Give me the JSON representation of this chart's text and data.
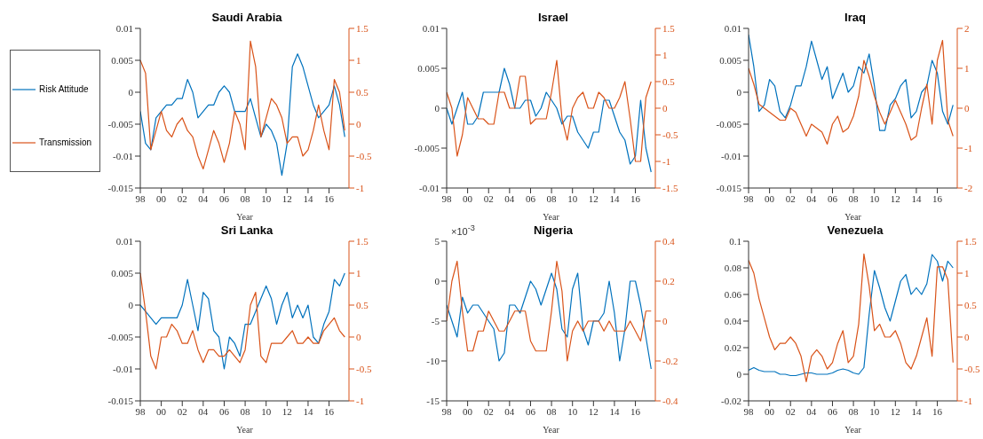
{
  "chart_data": [
    {
      "type": "line",
      "title": "Saudi Arabia",
      "xlabel": "Year",
      "legend": "left",
      "marker": "none",
      "x": [
        1998,
        1998.5,
        1999,
        1999.5,
        2000,
        2000.5,
        2001,
        2001.5,
        2002,
        2002.5,
        2003,
        2003.5,
        2004,
        2004.5,
        2005,
        2005.5,
        2006,
        2006.5,
        2007,
        2007.5,
        2008,
        2008.5,
        2009,
        2009.5,
        2010,
        2010.5,
        2011,
        2011.5,
        2012,
        2012.5,
        2013,
        2013.5,
        2014,
        2014.5,
        2015,
        2015.5,
        2016,
        2016.5,
        2017,
        2017.5
      ],
      "xlim": [
        1998,
        2017.9
      ],
      "xticks": [
        {
          "value": 1998,
          "label": "98"
        },
        {
          "value": 2000,
          "label": "00"
        },
        {
          "value": 2002,
          "label": "02"
        },
        {
          "value": 2004,
          "label": "04"
        },
        {
          "value": 2006,
          "label": "06"
        },
        {
          "value": 2008,
          "label": "08"
        },
        {
          "value": 2010,
          "label": "10"
        },
        {
          "value": 2012,
          "label": "12"
        },
        {
          "value": 2014,
          "label": "14"
        },
        {
          "value": 2016,
          "label": "16"
        }
      ],
      "ylim": [
        -0.015,
        0.01
      ],
      "yticks": [
        -0.015,
        -0.01,
        -0.005,
        0,
        0.005,
        0.01
      ],
      "y2lim": [
        -1,
        1.5
      ],
      "y2ticks": [
        -1,
        -0.5,
        0,
        0.5,
        1,
        1.5
      ],
      "series": [
        {
          "name": "Risk Attitude",
          "color": "#0072bd",
          "values": [
            -0.003,
            -0.008,
            -0.009,
            -0.004,
            -0.003,
            -0.002,
            -0.002,
            -0.001,
            -0.001,
            0.002,
            0,
            -0.004,
            -0.003,
            -0.002,
            -0.002,
            0,
            0.001,
            0,
            -0.003,
            -0.003,
            -0.003,
            -0.001,
            -0.004,
            -0.007,
            -0.005,
            -0.006,
            -0.008,
            -0.013,
            -0.008,
            0.004,
            0.006,
            0.004,
            0.001,
            -0.002,
            -0.004,
            -0.003,
            -0.002,
            0.001,
            -0.002,
            -0.007
          ]
        },
        {
          "name": "Transmission",
          "color": "#d95319",
          "axis": "y2",
          "values": [
            1,
            0.8,
            -0.4,
            -0.1,
            0.2,
            -0.1,
            -0.2,
            0,
            0.1,
            -0.1,
            -0.2,
            -0.5,
            -0.7,
            -0.4,
            -0.1,
            -0.3,
            -0.6,
            -0.3,
            0.2,
            0,
            -0.4,
            1.3,
            0.9,
            -0.2,
            0.1,
            0.4,
            0.3,
            0.1,
            -0.3,
            -0.2,
            -0.2,
            -0.5,
            -0.4,
            -0.1,
            0.3,
            -0.1,
            -0.4,
            0.7,
            0.5,
            -0.1
          ]
        }
      ]
    },
    {
      "type": "line",
      "title": "Israel",
      "xlabel": "Year",
      "marker": "none",
      "x": [
        1998,
        1998.5,
        1999,
        1999.5,
        2000,
        2000.5,
        2001,
        2001.5,
        2002,
        2002.5,
        2003,
        2003.5,
        2004,
        2004.5,
        2005,
        2005.5,
        2006,
        2006.5,
        2007,
        2007.5,
        2008,
        2008.5,
        2009,
        2009.5,
        2010,
        2010.5,
        2011,
        2011.5,
        2012,
        2012.5,
        2013,
        2013.5,
        2014,
        2014.5,
        2015,
        2015.5,
        2016,
        2016.5,
        2017,
        2017.5
      ],
      "xlim": [
        1998,
        2017.9
      ],
      "xticks": [
        {
          "value": 1998,
          "label": "98"
        },
        {
          "value": 2000,
          "label": "00"
        },
        {
          "value": 2002,
          "label": "02"
        },
        {
          "value": 2004,
          "label": "04"
        },
        {
          "value": 2006,
          "label": "06"
        },
        {
          "value": 2008,
          "label": "08"
        },
        {
          "value": 2010,
          "label": "10"
        },
        {
          "value": 2012,
          "label": "12"
        },
        {
          "value": 2014,
          "label": "14"
        },
        {
          "value": 2016,
          "label": "16"
        }
      ],
      "ylim": [
        -0.01,
        0.01
      ],
      "yticks": [
        -0.01,
        -0.005,
        0,
        0.005,
        0.01
      ],
      "y2lim": [
        -1.5,
        1.5
      ],
      "y2ticks": [
        -1.5,
        -1,
        -0.5,
        0,
        0.5,
        1,
        1.5
      ],
      "series": [
        {
          "color": "#0072bd",
          "values": [
            0,
            -0.002,
            0,
            0.002,
            -0.002,
            -0.002,
            -0.001,
            0.002,
            0.002,
            0.002,
            0.002,
            0.005,
            0.003,
            0,
            0,
            0.001,
            0.001,
            -0.001,
            0,
            0.002,
            0.001,
            0,
            -0.002,
            -0.001,
            -0.001,
            -0.003,
            -0.004,
            -0.005,
            -0.003,
            -0.003,
            0.001,
            0.001,
            -0.001,
            -0.003,
            -0.004,
            -0.007,
            -0.006,
            0.001,
            -0.005,
            -0.008
          ]
        },
        {
          "color": "#d95319",
          "axis": "y2",
          "values": [
            0.3,
            0,
            -0.9,
            -0.5,
            0.2,
            0,
            -0.2,
            -0.2,
            -0.3,
            -0.3,
            0.3,
            0.3,
            0,
            0,
            0.6,
            0.6,
            -0.3,
            -0.2,
            -0.2,
            -0.2,
            0.3,
            0.9,
            -0.2,
            -0.6,
            0,
            0.2,
            0.3,
            0,
            0,
            0.3,
            0.2,
            0,
            0,
            0.2,
            0.5,
            -0.2,
            -1,
            -1,
            0.2,
            0.5
          ]
        }
      ]
    },
    {
      "type": "line",
      "title": "Iraq",
      "xlabel": "Year",
      "marker": "none",
      "x": [
        1998,
        1998.5,
        1999,
        1999.5,
        2000,
        2000.5,
        2001,
        2001.5,
        2002,
        2002.5,
        2003,
        2003.5,
        2004,
        2004.5,
        2005,
        2005.5,
        2006,
        2006.5,
        2007,
        2007.5,
        2008,
        2008.5,
        2009,
        2009.5,
        2010,
        2010.5,
        2011,
        2011.5,
        2012,
        2012.5,
        2013,
        2013.5,
        2014,
        2014.5,
        2015,
        2015.5,
        2016,
        2016.5,
        2017,
        2017.5
      ],
      "xlim": [
        1998,
        2017.9
      ],
      "xticks": [
        {
          "value": 1998,
          "label": "98"
        },
        {
          "value": 2000,
          "label": "00"
        },
        {
          "value": 2002,
          "label": "02"
        },
        {
          "value": 2004,
          "label": "04"
        },
        {
          "value": 2006,
          "label": "06"
        },
        {
          "value": 2008,
          "label": "08"
        },
        {
          "value": 2010,
          "label": "10"
        },
        {
          "value": 2012,
          "label": "12"
        },
        {
          "value": 2014,
          "label": "14"
        },
        {
          "value": 2016,
          "label": "16"
        }
      ],
      "ylim": [
        -0.015,
        0.01
      ],
      "yticks": [
        -0.015,
        -0.01,
        -0.005,
        0,
        0.005,
        0.01
      ],
      "y2lim": [
        -2,
        2
      ],
      "y2ticks": [
        -2,
        -1,
        0,
        1,
        2
      ],
      "series": [
        {
          "color": "#0072bd",
          "values": [
            0.009,
            0.004,
            -0.003,
            -0.002,
            0.002,
            0.001,
            -0.003,
            -0.004,
            -0.002,
            0.001,
            0.001,
            0.004,
            0.008,
            0.005,
            0.002,
            0.004,
            -0.001,
            0.001,
            0.003,
            0,
            0.001,
            0.004,
            0.003,
            0.006,
            0.001,
            -0.006,
            -0.006,
            -0.002,
            -0.001,
            0.001,
            0.002,
            -0.004,
            -0.003,
            0,
            0.001,
            0.005,
            0.003,
            -0.003,
            -0.005,
            -0.002
          ]
        },
        {
          "color": "#d95319",
          "axis": "y2",
          "values": [
            1,
            0.6,
            0.1,
            0,
            -0.1,
            -0.2,
            -0.3,
            -0.3,
            0,
            -0.1,
            -0.4,
            -0.7,
            -0.4,
            -0.5,
            -0.6,
            -0.9,
            -0.4,
            -0.2,
            -0.6,
            -0.5,
            -0.2,
            0.3,
            1.2,
            0.8,
            0.3,
            -0.1,
            -0.4,
            -0.1,
            0.2,
            -0.1,
            -0.4,
            -0.8,
            -0.7,
            0,
            0.6,
            -0.4,
            1.2,
            1.7,
            -0.3,
            -0.7
          ]
        }
      ]
    },
    {
      "type": "line",
      "title": "Sri Lanka",
      "xlabel": "Year",
      "marker": "none",
      "x": [
        1998,
        1998.5,
        1999,
        1999.5,
        2000,
        2000.5,
        2001,
        2001.5,
        2002,
        2002.5,
        2003,
        2003.5,
        2004,
        2004.5,
        2005,
        2005.5,
        2006,
        2006.5,
        2007,
        2007.5,
        2008,
        2008.5,
        2009,
        2009.5,
        2010,
        2010.5,
        2011,
        2011.5,
        2012,
        2012.5,
        2013,
        2013.5,
        2014,
        2014.5,
        2015,
        2015.5,
        2016,
        2016.5,
        2017,
        2017.5
      ],
      "xlim": [
        1998,
        2017.9
      ],
      "xticks": [
        {
          "value": 1998,
          "label": "98"
        },
        {
          "value": 2000,
          "label": "00"
        },
        {
          "value": 2002,
          "label": "02"
        },
        {
          "value": 2004,
          "label": "04"
        },
        {
          "value": 2006,
          "label": "06"
        },
        {
          "value": 2008,
          "label": "08"
        },
        {
          "value": 2010,
          "label": "10"
        },
        {
          "value": 2012,
          "label": "12"
        },
        {
          "value": 2014,
          "label": "14"
        },
        {
          "value": 2016,
          "label": "16"
        }
      ],
      "ylim": [
        -0.015,
        0.01
      ],
      "yticks": [
        -0.015,
        -0.01,
        -0.005,
        0,
        0.005,
        0.01
      ],
      "y2lim": [
        -1,
        1.5
      ],
      "y2ticks": [
        -1,
        -0.5,
        0,
        0.5,
        1,
        1.5
      ],
      "series": [
        {
          "color": "#0072bd",
          "values": [
            0,
            -0.001,
            -0.002,
            -0.003,
            -0.002,
            -0.002,
            -0.002,
            -0.002,
            0,
            0.004,
            0,
            -0.004,
            0.002,
            0.001,
            -0.004,
            -0.005,
            -0.01,
            -0.005,
            -0.006,
            -0.008,
            -0.003,
            -0.003,
            -0.001,
            0.001,
            0.003,
            0.001,
            -0.003,
            0,
            0.002,
            -0.002,
            0,
            -0.002,
            0,
            -0.005,
            -0.006,
            -0.003,
            -0.001,
            0.004,
            0.003,
            0.005
          ]
        },
        {
          "color": "#d95319",
          "axis": "y2",
          "values": [
            1,
            0.4,
            -0.3,
            -0.5,
            0,
            0,
            0.2,
            0.1,
            -0.1,
            -0.1,
            0.1,
            -0.2,
            -0.4,
            -0.2,
            -0.2,
            -0.3,
            -0.3,
            -0.2,
            -0.3,
            -0.4,
            -0.2,
            0.5,
            0.7,
            -0.3,
            -0.4,
            -0.1,
            -0.1,
            -0.1,
            0,
            0.1,
            -0.1,
            -0.1,
            0,
            -0.1,
            -0.1,
            0.1,
            0.2,
            0.3,
            0.1,
            0
          ]
        }
      ]
    },
    {
      "type": "line",
      "title": "Nigeria",
      "xlabel": "Year",
      "marker": "none",
      "annotations": [
        "×10$^{-3}$"
      ],
      "x": [
        1998,
        1998.5,
        1999,
        1999.5,
        2000,
        2000.5,
        2001,
        2001.5,
        2002,
        2002.5,
        2003,
        2003.5,
        2004,
        2004.5,
        2005,
        2005.5,
        2006,
        2006.5,
        2007,
        2007.5,
        2008,
        2008.5,
        2009,
        2009.5,
        2010,
        2010.5,
        2011,
        2011.5,
        2012,
        2012.5,
        2013,
        2013.5,
        2014,
        2014.5,
        2015,
        2015.5,
        2016,
        2016.5,
        2017,
        2017.5
      ],
      "xlim": [
        1998,
        2017.9
      ],
      "xticks": [
        {
          "value": 1998,
          "label": "98"
        },
        {
          "value": 2000,
          "label": "00"
        },
        {
          "value": 2002,
          "label": "02"
        },
        {
          "value": 2004,
          "label": "04"
        },
        {
          "value": 2006,
          "label": "06"
        },
        {
          "value": 2008,
          "label": "08"
        },
        {
          "value": 2010,
          "label": "10"
        },
        {
          "value": 2012,
          "label": "12"
        },
        {
          "value": 2014,
          "label": "14"
        },
        {
          "value": 2016,
          "label": "16"
        }
      ],
      "ylim": [
        -15,
        5
      ],
      "yticks": [
        -15,
        -10,
        -5,
        0,
        5
      ],
      "y2lim": [
        -0.4,
        0.4
      ],
      "y2ticks": [
        -0.4,
        -0.2,
        0,
        0.2,
        0.4
      ],
      "series": [
        {
          "color": "#0072bd",
          "values": [
            -3,
            -5,
            -7,
            -2,
            -4,
            -3,
            -3,
            -4,
            -5,
            -6,
            -10,
            -9,
            -3,
            -3,
            -4,
            -2,
            0,
            -1,
            -3,
            -1,
            1,
            -1,
            -6,
            -7,
            -1,
            1,
            -6,
            -8,
            -5,
            -5,
            -4,
            0,
            -4,
            -10,
            -6,
            0,
            0,
            -3,
            -7,
            -11
          ]
        },
        {
          "color": "#d95319",
          "axis": "y2",
          "values": [
            0,
            0.2,
            0.3,
            0.05,
            -0.15,
            -0.15,
            -0.05,
            -0.05,
            0.05,
            0,
            -0.05,
            -0.05,
            0,
            0.05,
            0.05,
            0.05,
            -0.1,
            -0.15,
            -0.15,
            -0.15,
            0.05,
            0.3,
            0.15,
            -0.2,
            -0.05,
            0,
            -0.05,
            0,
            0,
            0,
            -0.05,
            0,
            -0.05,
            -0.05,
            -0.05,
            0,
            -0.05,
            -0.1,
            0.05,
            0.05
          ]
        }
      ]
    },
    {
      "type": "line",
      "title": "Venezuela",
      "xlabel": "Year",
      "marker": "none",
      "x": [
        1998,
        1998.5,
        1999,
        1999.5,
        2000,
        2000.5,
        2001,
        2001.5,
        2002,
        2002.5,
        2003,
        2003.5,
        2004,
        2004.5,
        2005,
        2005.5,
        2006,
        2006.5,
        2007,
        2007.5,
        2008,
        2008.5,
        2009,
        2009.5,
        2010,
        2010.5,
        2011,
        2011.5,
        2012,
        2012.5,
        2013,
        2013.5,
        2014,
        2014.5,
        2015,
        2015.5,
        2016,
        2016.5,
        2017,
        2017.5
      ],
      "xlim": [
        1998,
        2017.9
      ],
      "xticks": [
        {
          "value": 1998,
          "label": "98"
        },
        {
          "value": 2000,
          "label": "00"
        },
        {
          "value": 2002,
          "label": "02"
        },
        {
          "value": 2004,
          "label": "04"
        },
        {
          "value": 2006,
          "label": "06"
        },
        {
          "value": 2008,
          "label": "08"
        },
        {
          "value": 2010,
          "label": "10"
        },
        {
          "value": 2012,
          "label": "12"
        },
        {
          "value": 2014,
          "label": "14"
        },
        {
          "value": 2016,
          "label": "16"
        }
      ],
      "ylim": [
        -0.02,
        0.1
      ],
      "yticks": [
        -0.02,
        0,
        0.02,
        0.04,
        0.06,
        0.08,
        0.1
      ],
      "y2lim": [
        -1,
        1.5
      ],
      "y2ticks": [
        -1,
        -0.5,
        0,
        0.5,
        1,
        1.5
      ],
      "series": [
        {
          "color": "#0072bd",
          "values": [
            0.003,
            0.005,
            0.003,
            0.002,
            0.002,
            0.002,
            0,
            0,
            -0.001,
            -0.001,
            0,
            0.001,
            0.001,
            0,
            0,
            0,
            0.001,
            0.003,
            0.004,
            0.003,
            0.001,
            0,
            0.005,
            0.045,
            0.078,
            0.065,
            0.05,
            0.04,
            0.055,
            0.07,
            0.075,
            0.06,
            0.065,
            0.06,
            0.068,
            0.09,
            0.085,
            0.07,
            0.085,
            0.08
          ]
        },
        {
          "color": "#d95319",
          "axis": "y2",
          "values": [
            1.2,
            1,
            0.6,
            0.3,
            0,
            -0.2,
            -0.1,
            -0.1,
            0,
            -0.1,
            -0.3,
            -0.7,
            -0.3,
            -0.2,
            -0.3,
            -0.5,
            -0.4,
            -0.1,
            0.1,
            -0.4,
            -0.3,
            0.2,
            1.3,
            0.8,
            0.1,
            0.2,
            0,
            0,
            0.1,
            -0.1,
            -0.4,
            -0.5,
            -0.3,
            0,
            0.3,
            -0.3,
            1.1,
            1.1,
            0.9,
            -0.4
          ]
        }
      ]
    }
  ]
}
